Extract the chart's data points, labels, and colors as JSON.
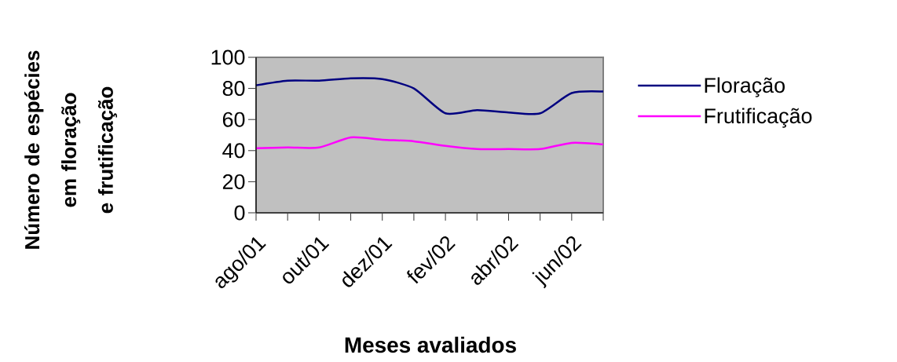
{
  "chart_data": {
    "type": "line",
    "xlabel": "Meses avaliados",
    "ylabel": "Número de espécies em floração e frutificação",
    "categories": [
      "ago/01",
      null,
      "out/01",
      null,
      "dez/01",
      null,
      "fev/02",
      null,
      "abr/02",
      null,
      "jun/02",
      null
    ],
    "series": [
      {
        "name": "Floração",
        "color": "#000080",
        "values": [
          82,
          85,
          85,
          86.5,
          86,
          80,
          64,
          66,
          64.5,
          64,
          77,
          78
        ]
      },
      {
        "name": "Frutificação",
        "color": "#ff00ff",
        "values": [
          41.5,
          42,
          42,
          48.5,
          47,
          46,
          43,
          41,
          41,
          41,
          45,
          44
        ]
      }
    ],
    "ylim": [
      0,
      100
    ],
    "yticks": [
      0,
      20,
      40,
      60,
      80,
      100
    ],
    "legend": "right",
    "marker": "none",
    "line_style": "solid"
  }
}
